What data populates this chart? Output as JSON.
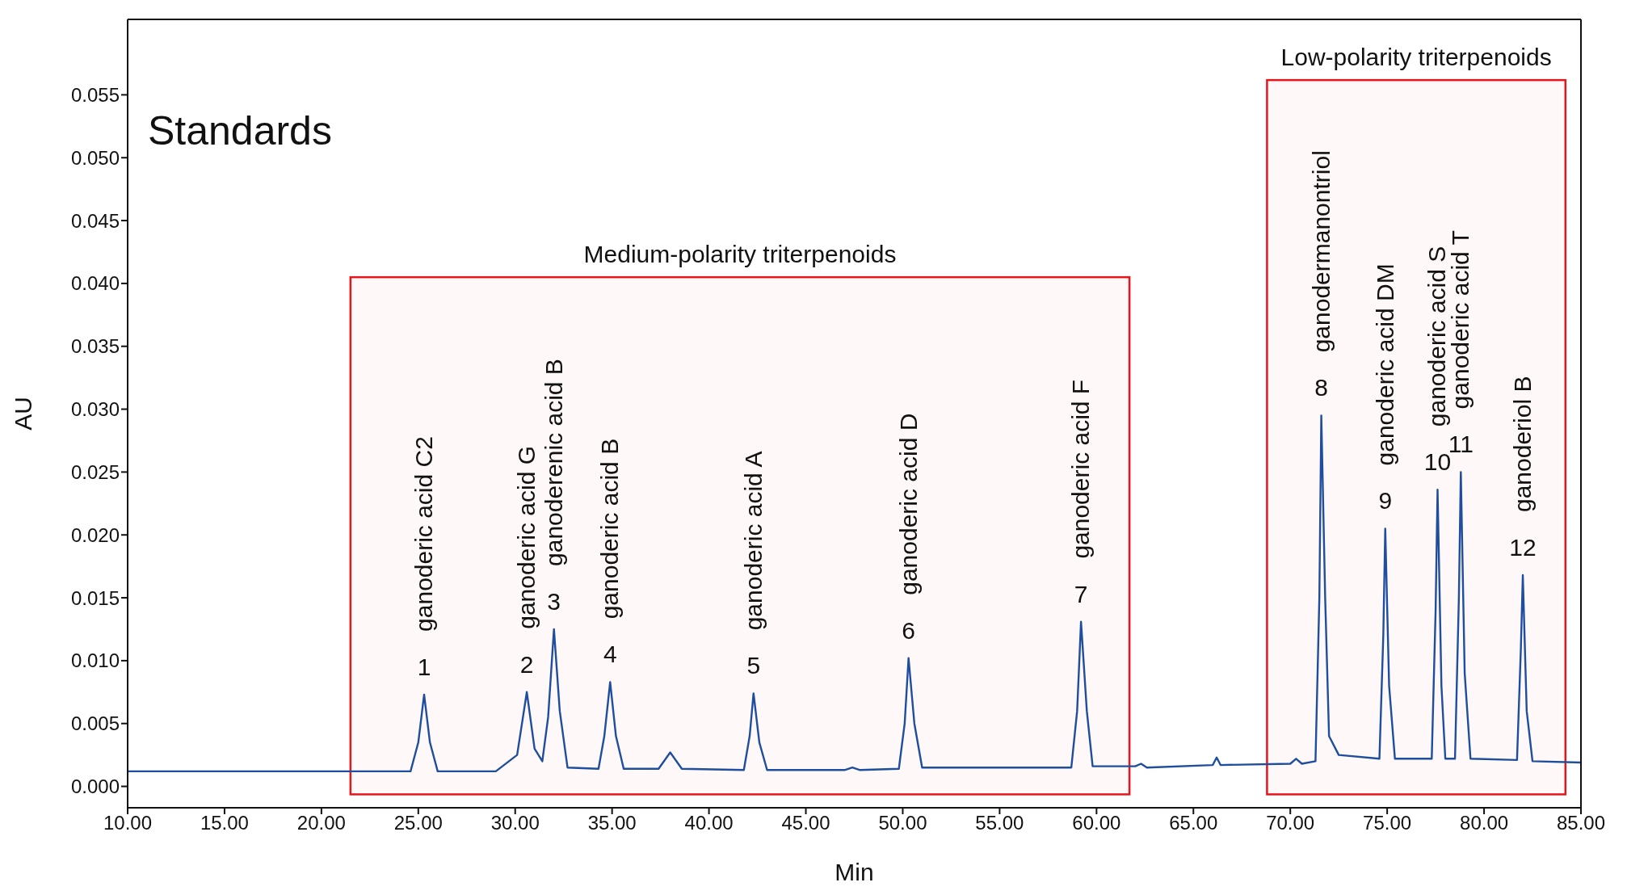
{
  "chart_data": {
    "type": "line",
    "xlabel": "Min",
    "ylabel": "AU",
    "x": [
      10,
      20,
      24.6,
      25.0,
      25.3,
      25.6,
      26.0,
      29.0,
      30.1,
      30.6,
      31.0,
      31.4,
      31.7,
      32.0,
      32.3,
      32.7,
      34.3,
      34.6,
      34.9,
      35.2,
      35.6,
      37.4,
      38.0,
      38.6,
      41.8,
      42.1,
      42.3,
      42.6,
      43.0,
      47.0,
      47.4,
      47.8,
      49.8,
      50.1,
      50.3,
      50.6,
      51.0,
      58.7,
      59.0,
      59.2,
      59.5,
      59.8,
      62.0,
      62.3,
      62.6,
      66.0,
      66.2,
      66.4,
      70.0,
      70.3,
      70.6,
      71.3,
      71.5,
      71.6,
      71.8,
      72.0,
      72.5,
      74.6,
      74.8,
      74.9,
      75.1,
      75.4,
      77.3,
      77.5,
      77.6,
      77.8,
      78.0,
      78.5,
      78.7,
      78.8,
      79.0,
      79.3,
      81.7,
      81.9,
      82.0,
      82.2,
      82.5,
      85
    ],
    "series": [
      {
        "color": "#1f4e9e",
        "values": [
          0.0012,
          0.0012,
          0.0012,
          0.0035,
          0.0073,
          0.0035,
          0.0012,
          0.0012,
          0.0025,
          0.0075,
          0.003,
          0.002,
          0.0055,
          0.0125,
          0.006,
          0.0015,
          0.0014,
          0.004,
          0.0083,
          0.004,
          0.0014,
          0.0014,
          0.0027,
          0.0014,
          0.0013,
          0.004,
          0.0074,
          0.0035,
          0.0013,
          0.0013,
          0.0015,
          0.0013,
          0.0014,
          0.005,
          0.0102,
          0.005,
          0.0015,
          0.0015,
          0.006,
          0.0131,
          0.006,
          0.0016,
          0.0016,
          0.0018,
          0.0015,
          0.0017,
          0.0023,
          0.0017,
          0.0018,
          0.0022,
          0.0018,
          0.002,
          0.015,
          0.0295,
          0.015,
          0.004,
          0.0025,
          0.0022,
          0.012,
          0.0205,
          0.008,
          0.0022,
          0.0022,
          0.014,
          0.0236,
          0.008,
          0.0022,
          0.0022,
          0.015,
          0.025,
          0.009,
          0.0022,
          0.0021,
          0.011,
          0.0168,
          0.006,
          0.002,
          0.0019
        ]
      }
    ],
    "xlim": [
      10,
      85
    ],
    "xticks": [
      {
        "value": 10,
        "label": "10.00"
      },
      {
        "value": 15,
        "label": "15.00"
      },
      {
        "value": 20,
        "label": "20.00"
      },
      {
        "value": 25,
        "label": "25.00"
      },
      {
        "value": 30,
        "label": "30.00"
      },
      {
        "value": 35,
        "label": "35.00"
      },
      {
        "value": 40,
        "label": "40.00"
      },
      {
        "value": 45,
        "label": "45.00"
      },
      {
        "value": 50,
        "label": "50.00"
      },
      {
        "value": 55,
        "label": "55.00"
      },
      {
        "value": 60,
        "label": "60.00"
      },
      {
        "value": 65,
        "label": "65.00"
      },
      {
        "value": 70,
        "label": "70.00"
      },
      {
        "value": 75,
        "label": "75.00"
      },
      {
        "value": 80,
        "label": "80.00"
      },
      {
        "value": 85,
        "label": "85.00"
      }
    ],
    "ylim": [
      -0.0017,
      0.061
    ],
    "yticks": [
      {
        "value": 0,
        "label": "0.000"
      },
      {
        "value": 0.005,
        "label": "0.005"
      },
      {
        "value": 0.01,
        "label": "0.010"
      },
      {
        "value": 0.015,
        "label": "0.015"
      },
      {
        "value": 0.02,
        "label": "0.020"
      },
      {
        "value": 0.025,
        "label": "0.025"
      },
      {
        "value": 0.03,
        "label": "0.030"
      },
      {
        "value": 0.035,
        "label": "0.035"
      },
      {
        "value": 0.04,
        "label": "0.040"
      },
      {
        "value": 0.045,
        "label": "0.045"
      },
      {
        "value": 0.05,
        "label": "0.050"
      },
      {
        "value": 0.055,
        "label": "0.055"
      }
    ],
    "grid": false,
    "legend": false,
    "marker": "none",
    "line_style": "solid",
    "bands": [
      {
        "axis": "x",
        "from": 21.5,
        "to": 61.7,
        "label": "Medium-polarity triterpenoids",
        "color": "#e8141c"
      },
      {
        "axis": "x",
        "from": 68.8,
        "to": 84.2,
        "label": "Low-polarity triterpenoids",
        "color": "#e8141c"
      }
    ],
    "annotations": [
      "Standards",
      {
        "text": "1",
        "x": 25.3,
        "y": 0.0073
      },
      {
        "text": "ganoderic acid C2",
        "x": 25.3,
        "y": 0.0073
      },
      {
        "text": "2",
        "x": 30.6,
        "y": 0.0075
      },
      {
        "text": "ganoderic acid G",
        "x": 30.6,
        "y": 0.0075
      },
      {
        "text": "3",
        "x": 32.0,
        "y": 0.0125
      },
      {
        "text": "ganoderenic acid B",
        "x": 32.0,
        "y": 0.0125
      },
      {
        "text": "4",
        "x": 34.9,
        "y": 0.0083
      },
      {
        "text": "ganoderic acid B",
        "x": 34.9,
        "y": 0.0083
      },
      {
        "text": "5",
        "x": 42.3,
        "y": 0.0074
      },
      {
        "text": "ganoderic acid A",
        "x": 42.3,
        "y": 0.0074
      },
      {
        "text": "6",
        "x": 50.3,
        "y": 0.0102
      },
      {
        "text": "ganoderic acid D",
        "x": 50.3,
        "y": 0.0102
      },
      {
        "text": "7",
        "x": 59.2,
        "y": 0.0131
      },
      {
        "text": "ganoderic acid F",
        "x": 59.2,
        "y": 0.0131
      },
      {
        "text": "8",
        "x": 71.6,
        "y": 0.0295
      },
      {
        "text": "ganodermanontriol",
        "x": 71.6,
        "y": 0.0295
      },
      {
        "text": "9",
        "x": 74.9,
        "y": 0.0205
      },
      {
        "text": "ganoderic acid DM",
        "x": 74.9,
        "y": 0.0205
      },
      {
        "text": "10",
        "x": 77.6,
        "y": 0.0236
      },
      {
        "text": "ganoderic acid S",
        "x": 77.6,
        "y": 0.0236
      },
      {
        "text": "11",
        "x": 78.8,
        "y": 0.025
      },
      {
        "text": "ganoderic acid T",
        "x": 78.8,
        "y": 0.025
      },
      {
        "text": "12",
        "x": 82.0,
        "y": 0.0168
      },
      {
        "text": "ganoderiol B",
        "x": 82.0,
        "y": 0.0168
      }
    ]
  }
}
